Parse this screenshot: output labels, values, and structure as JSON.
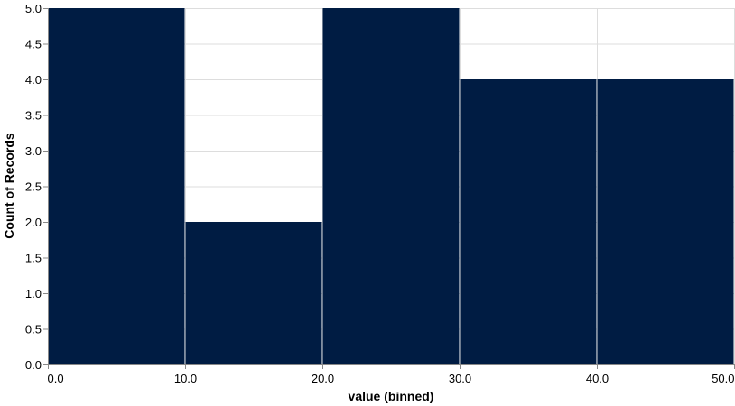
{
  "chart_data": {
    "type": "bar",
    "bins": [
      {
        "start": 0,
        "end": 10,
        "count": 5
      },
      {
        "start": 10,
        "end": 20,
        "count": 2
      },
      {
        "start": 20,
        "end": 30,
        "count": 5
      },
      {
        "start": 30,
        "end": 40,
        "count": 4
      },
      {
        "start": 40,
        "end": 50,
        "count": 4
      }
    ],
    "xlabel": "value (binned)",
    "ylabel": "Count of Records",
    "xlim": [
      0,
      50
    ],
    "ylim": [
      0,
      5
    ],
    "x_ticks": [
      "0.0",
      "10.0",
      "20.0",
      "30.0",
      "40.0",
      "50.0"
    ],
    "y_ticks": [
      "0.0",
      "0.5",
      "1.0",
      "1.5",
      "2.0",
      "2.5",
      "3.0",
      "3.5",
      "4.0",
      "4.5",
      "5.0"
    ],
    "grid": true,
    "bar_color": "#001c43",
    "grid_color": "#dddddd"
  }
}
